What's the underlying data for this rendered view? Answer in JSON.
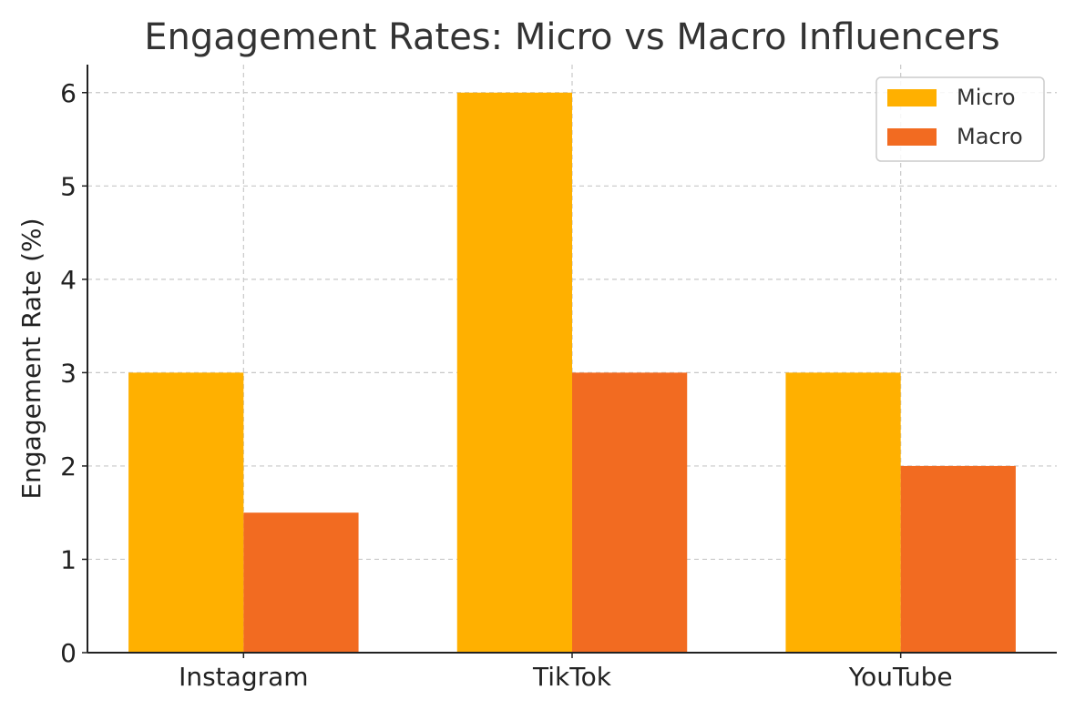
{
  "chart_data": {
    "type": "bar",
    "title": "Engagement Rates: Micro vs Macro Influencers",
    "xlabel": "",
    "ylabel": "Engagement Rate (%)",
    "categories": [
      "Instagram",
      "TikTok",
      "YouTube"
    ],
    "series": [
      {
        "name": "Micro",
        "values": [
          3,
          6,
          3
        ],
        "color": "#FFB000"
      },
      {
        "name": "Macro",
        "values": [
          1.5,
          3,
          2
        ],
        "color": "#F26B21"
      }
    ],
    "ylim": [
      0,
      6.3
    ],
    "yticks": [
      "0",
      "1",
      "2",
      "3",
      "4",
      "5",
      "6"
    ],
    "grid": true,
    "grid_style": "dashed",
    "legend_position": "top-right",
    "colors": {
      "grid": "#c8c8c8",
      "axis": "#222222",
      "legend_border": "#cccccc"
    }
  }
}
